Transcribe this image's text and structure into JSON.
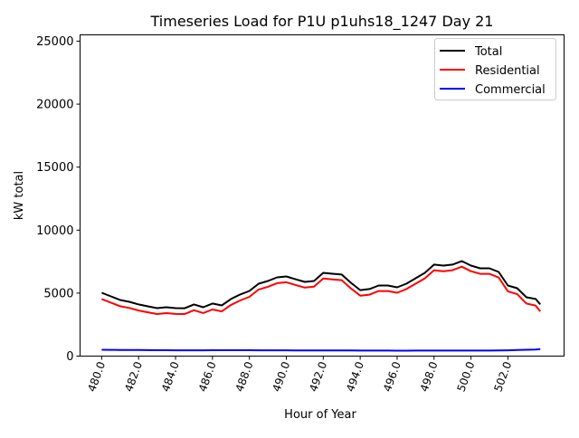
{
  "chart_data": {
    "type": "line",
    "title": "Timeseries Load for P1U p1uhs18_1247  Day 21",
    "xlabel": "Hour of Year",
    "ylabel": "kW total",
    "xlim": [
      478.83,
      505.04
    ],
    "ylim": [
      0,
      25500
    ],
    "xticks": [
      480,
      482,
      484,
      486,
      488,
      490,
      492,
      494,
      496,
      498,
      500,
      502
    ],
    "xtick_labels": [
      "480.0",
      "482.0",
      "484.0",
      "486.0",
      "488.0",
      "490.0",
      "492.0",
      "494.0",
      "496.0",
      "498.0",
      "500.0",
      "502.0"
    ],
    "yticks": [
      0,
      5000,
      10000,
      15000,
      20000,
      25000
    ],
    "ytick_labels": [
      "0",
      "5000",
      "10000",
      "15000",
      "20000",
      "25000"
    ],
    "grid": false,
    "legend_position": "top-right",
    "x": [
      480,
      480.5,
      481,
      481.5,
      482,
      482.5,
      483,
      483.5,
      484,
      484.5,
      485,
      485.5,
      486,
      486.5,
      487,
      487.5,
      488,
      488.5,
      489,
      489.5,
      490,
      490.5,
      491,
      491.5,
      492,
      492.5,
      493,
      493.5,
      494,
      494.5,
      495,
      495.5,
      496,
      496.5,
      497,
      497.5,
      498,
      498.5,
      499,
      499.5,
      500,
      500.5,
      501,
      501.5,
      502,
      502.5,
      503,
      503.5,
      503.75
    ],
    "series": [
      {
        "name": "Total",
        "color": "#000000",
        "values": [
          5030,
          4740,
          4450,
          4310,
          4100,
          3950,
          3810,
          3880,
          3810,
          3800,
          4100,
          3880,
          4170,
          4020,
          4530,
          4890,
          5170,
          5750,
          5960,
          6250,
          6320,
          6100,
          5890,
          5960,
          6610,
          6540,
          6470,
          5820,
          5240,
          5320,
          5600,
          5600,
          5460,
          5750,
          6180,
          6610,
          7260,
          7180,
          7260,
          7540,
          7180,
          6970,
          6970,
          6680,
          5600,
          5390,
          4670,
          4530,
          4100
        ]
      },
      {
        "name": "Residential",
        "color": "#ff0000",
        "values": [
          4530,
          4245,
          3960,
          3825,
          3620,
          3475,
          3340,
          3415,
          3350,
          3340,
          3640,
          3420,
          3700,
          3550,
          4060,
          4420,
          4705,
          5290,
          5500,
          5790,
          5860,
          5645,
          5435,
          5510,
          6160,
          6090,
          6025,
          5375,
          4800,
          4880,
          5165,
          5165,
          5030,
          5320,
          5745,
          6170,
          6820,
          6740,
          6820,
          7100,
          6740,
          6530,
          6530,
          6235,
          5140,
          4910,
          4170,
          4010,
          3550
        ]
      },
      {
        "name": "Commercial",
        "color": "#0000ff",
        "values": [
          500,
          495,
          490,
          485,
          480,
          475,
          470,
          465,
          460,
          460,
          460,
          460,
          470,
          470,
          470,
          470,
          465,
          460,
          460,
          460,
          460,
          455,
          455,
          450,
          450,
          450,
          445,
          445,
          440,
          440,
          435,
          435,
          430,
          430,
          435,
          440,
          440,
          440,
          440,
          440,
          440,
          440,
          440,
          445,
          460,
          480,
          500,
          520,
          550
        ]
      }
    ]
  }
}
